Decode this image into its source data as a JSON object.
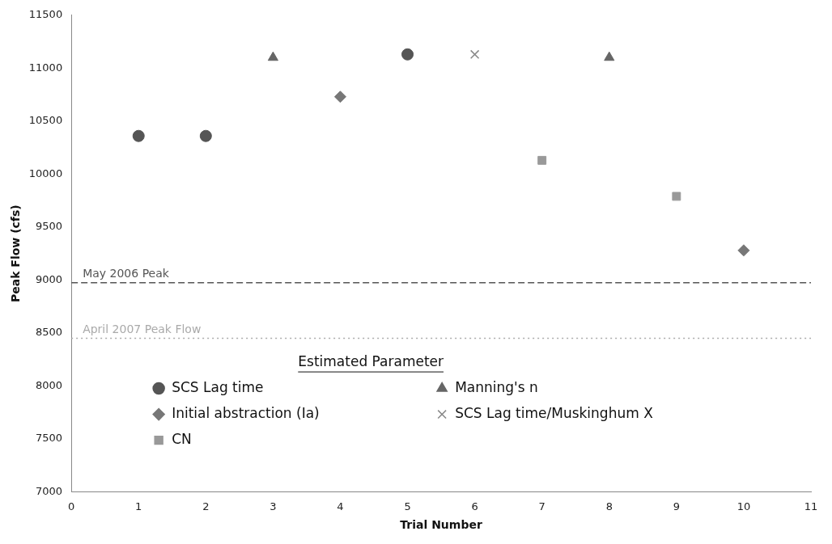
{
  "chart_data": {
    "type": "scatter",
    "xlabel": "Trial Number",
    "ylabel": "Peak Flow (cfs)",
    "legend_title": "Estimated Parameter",
    "legend": "bottom",
    "grid": false,
    "xlim": [
      0,
      11
    ],
    "xticks": [
      0,
      1,
      2,
      3,
      4,
      5,
      6,
      7,
      8,
      9,
      10,
      11
    ],
    "ylim": [
      7000,
      11500
    ],
    "yticks": [
      7000,
      7500,
      8000,
      8500,
      9000,
      9500,
      10000,
      10500,
      11000,
      11500
    ],
    "series": [
      {
        "name": "SCS Lag time",
        "color": "#555555",
        "marker": "circle",
        "x": [
          1,
          2,
          5
        ],
        "values": [
          10360,
          10360,
          11130
        ]
      },
      {
        "name": "Manning's n",
        "color": "#666666",
        "marker": "triangle",
        "x": [
          3,
          8
        ],
        "values": [
          11100,
          11100
        ]
      },
      {
        "name": "Initial abstraction (Ia)",
        "color": "#777777",
        "marker": "diamond",
        "x": [
          4,
          10
        ],
        "values": [
          10730,
          9280
        ]
      },
      {
        "name": "SCS Lag time/Muskinghum X",
        "color": "#888888",
        "marker": "cross",
        "x": [
          6
        ],
        "values": [
          11130
        ]
      },
      {
        "name": "CN",
        "color": "#999999",
        "marker": "square",
        "x": [
          7,
          9
        ],
        "values": [
          10130,
          9790
        ]
      }
    ],
    "ref_lines": [
      {
        "axis": "y",
        "value": 8975,
        "label": "May 2006 Peak",
        "color": "#555555",
        "line_style": "dashed"
      },
      {
        "axis": "y",
        "value": 8450,
        "label": "April 2007 Peak Flow",
        "color": "#aaaaaa",
        "line_style": "dotted"
      }
    ]
  }
}
